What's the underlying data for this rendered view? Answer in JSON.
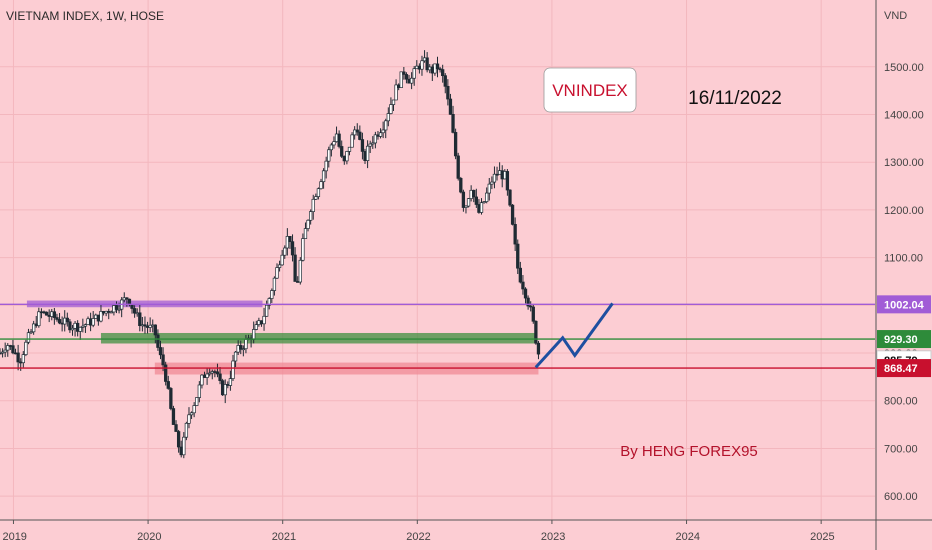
{
  "header": {
    "symbol_line": "VIETNAM INDEX, 1W, HOSE"
  },
  "currency": "VND",
  "annotations": {
    "badge": "VNINDEX",
    "date": "16/11/2022",
    "credit": "By HENG FOREX95"
  },
  "colors": {
    "background": "#fccdd3",
    "candle": "#1f2a33",
    "resistance": "#a15cd6",
    "support": "#2e8b3a",
    "low_support": "#c8102e",
    "projection": "#1e4fa0",
    "current": "#ffffff"
  },
  "chart_data": {
    "type": "candlestick",
    "title": "VIETNAM INDEX, 1W, HOSE",
    "y_unit": "VND",
    "ylim": [
      550,
      1640
    ],
    "xlim": [
      2018.9,
      2025.4
    ],
    "y_ticks": [
      600,
      700,
      800,
      900,
      1000,
      1100,
      1200,
      1300,
      1400,
      1500
    ],
    "y_tick_labels": [
      "600.00",
      "700.00",
      "800.00",
      "900.00",
      "1000.00",
      "1100.00",
      "1200.00",
      "1300.00",
      "1400.00",
      "1500.00"
    ],
    "x_ticks": [
      2019,
      2020,
      2021,
      2022,
      2023,
      2024,
      2025
    ],
    "x_tick_labels": [
      "2019",
      "2020",
      "2021",
      "2022",
      "2023",
      "2024",
      "2025"
    ],
    "price_path": [
      [
        2018.9,
        900
      ],
      [
        2018.95,
        920
      ],
      [
        2019.0,
        905
      ],
      [
        2019.05,
        885
      ],
      [
        2019.1,
        925
      ],
      [
        2019.2,
        985
      ],
      [
        2019.3,
        975
      ],
      [
        2019.4,
        960
      ],
      [
        2019.5,
        955
      ],
      [
        2019.6,
        970
      ],
      [
        2019.7,
        990
      ],
      [
        2019.8,
        1005
      ],
      [
        2019.85,
        1018
      ],
      [
        2019.9,
        985
      ],
      [
        2019.95,
        960
      ],
      [
        2020.0,
        955
      ],
      [
        2020.05,
        945
      ],
      [
        2020.08,
        900
      ],
      [
        2020.12,
        870
      ],
      [
        2020.18,
        760
      ],
      [
        2020.22,
        710
      ],
      [
        2020.25,
        690
      ],
      [
        2020.3,
        770
      ],
      [
        2020.35,
        800
      ],
      [
        2020.4,
        845
      ],
      [
        2020.45,
        870
      ],
      [
        2020.5,
        860
      ],
      [
        2020.55,
        820
      ],
      [
        2020.6,
        840
      ],
      [
        2020.65,
        900
      ],
      [
        2020.75,
        930
      ],
      [
        2020.85,
        970
      ],
      [
        2020.9,
        1015
      ],
      [
        2021.0,
        1120
      ],
      [
        2021.05,
        1150
      ],
      [
        2021.1,
        1030
      ],
      [
        2021.15,
        1130
      ],
      [
        2021.2,
        1200
      ],
      [
        2021.3,
        1280
      ],
      [
        2021.35,
        1330
      ],
      [
        2021.4,
        1360
      ],
      [
        2021.45,
        1290
      ],
      [
        2021.5,
        1340
      ],
      [
        2021.55,
        1380
      ],
      [
        2021.6,
        1300
      ],
      [
        2021.65,
        1340
      ],
      [
        2021.7,
        1360
      ],
      [
        2021.75,
        1380
      ],
      [
        2021.8,
        1420
      ],
      [
        2021.85,
        1460
      ],
      [
        2021.9,
        1490
      ],
      [
        2021.95,
        1470
      ],
      [
        2022.0,
        1500
      ],
      [
        2022.05,
        1510
      ],
      [
        2022.1,
        1490
      ],
      [
        2022.15,
        1500
      ],
      [
        2022.2,
        1470
      ],
      [
        2022.25,
        1390
      ],
      [
        2022.3,
        1280
      ],
      [
        2022.35,
        1200
      ],
      [
        2022.4,
        1250
      ],
      [
        2022.45,
        1190
      ],
      [
        2022.5,
        1220
      ],
      [
        2022.55,
        1260
      ],
      [
        2022.6,
        1280
      ],
      [
        2022.65,
        1270
      ],
      [
        2022.7,
        1180
      ],
      [
        2022.75,
        1070
      ],
      [
        2022.8,
        1030
      ],
      [
        2022.85,
        980
      ],
      [
        2022.88,
        930
      ],
      [
        2022.9,
        900
      ]
    ],
    "levels": [
      {
        "label": "1002.04",
        "value": 1002.04,
        "color": "#a15cd6",
        "kind": "resistance"
      },
      {
        "label": "929.30",
        "value": 929.3,
        "color": "#2e8b3a",
        "kind": "support"
      },
      {
        "label": "885.79",
        "value": 885.79,
        "color": "#ffffff",
        "kind": "current"
      },
      {
        "label": "868.47",
        "value": 868.47,
        "color": "#c8102e",
        "kind": "support"
      }
    ],
    "zones": [
      {
        "name": "resistance zone",
        "x": [
          2019.1,
          2020.85
        ],
        "y": [
          996,
          1010
        ],
        "color": "#a15cd6"
      },
      {
        "name": "support zone",
        "x": [
          2019.65,
          2022.88
        ],
        "y": [
          920,
          942
        ],
        "color": "#3f8f3f"
      },
      {
        "name": "low support zone",
        "x": [
          2020.05,
          2022.9
        ],
        "y": [
          855,
          880
        ],
        "color": "#f08a95"
      }
    ],
    "projection_path": [
      [
        2022.88,
        870
      ],
      [
        2023.08,
        932
      ],
      [
        2023.17,
        895
      ],
      [
        2023.45,
        1004
      ]
    ],
    "grid": true
  }
}
